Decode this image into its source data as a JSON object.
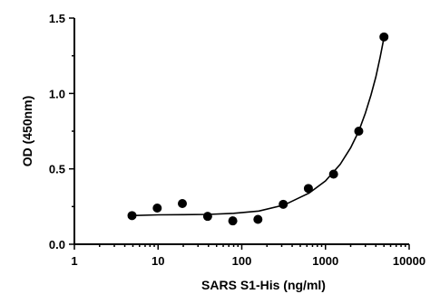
{
  "chart_data": {
    "type": "scatter",
    "xlabel": "SARS S1-His (ng/ml)",
    "ylabel": "OD (450nm)",
    "x_scale": "log",
    "xlim": [
      1,
      10000
    ],
    "ylim": [
      0,
      1.5
    ],
    "x_ticks": [
      1,
      10,
      100,
      1000,
      10000
    ],
    "x_tick_labels": [
      "1",
      "10",
      "100",
      "1000",
      "10000"
    ],
    "y_ticks": [
      0,
      0.5,
      1.0,
      1.5
    ],
    "y_tick_labels": [
      "0.0",
      "0.5",
      "1.0",
      "1.5"
    ],
    "grid": false,
    "legend": "none",
    "series": [
      {
        "points": [
          {
            "x": 4.88,
            "y": 0.19
          },
          {
            "x": 9.77,
            "y": 0.24
          },
          {
            "x": 19.5,
            "y": 0.27
          },
          {
            "x": 39.1,
            "y": 0.185
          },
          {
            "x": 78.1,
            "y": 0.155
          },
          {
            "x": 156,
            "y": 0.165
          },
          {
            "x": 313,
            "y": 0.265
          },
          {
            "x": 625,
            "y": 0.37
          },
          {
            "x": 1250,
            "y": 0.465
          },
          {
            "x": 2500,
            "y": 0.75
          },
          {
            "x": 5000,
            "y": 1.375
          }
        ],
        "fit_curve": {
          "x": [
            4.88,
            10,
            20,
            40,
            80,
            160,
            320,
            640,
            1000,
            1500,
            2000,
            2500,
            3000,
            3500,
            4000,
            4500,
            5000
          ],
          "y": [
            0.19,
            0.195,
            0.196,
            0.198,
            0.205,
            0.22,
            0.26,
            0.34,
            0.42,
            0.53,
            0.64,
            0.75,
            0.87,
            0.99,
            1.11,
            1.24,
            1.37
          ]
        }
      }
    ]
  }
}
